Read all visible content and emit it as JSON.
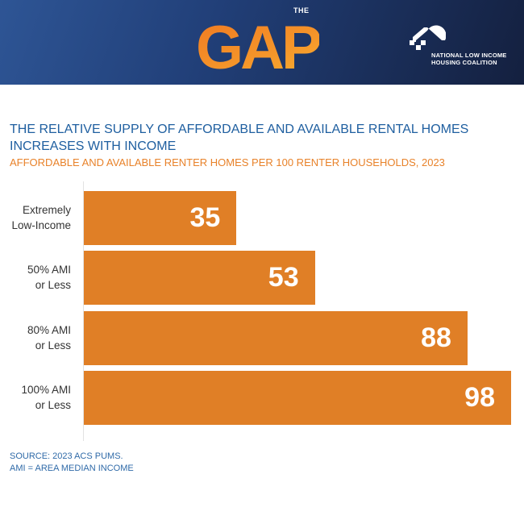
{
  "header": {
    "logo_small": "THE",
    "logo_main": "GAP",
    "org_line1": "NATIONAL LOW INCOME",
    "org_line2": "HOUSING COALITION"
  },
  "colors": {
    "bar": "#E07F26",
    "title": "#1F5FA0",
    "subtitle": "#E8822A"
  },
  "chart_data": {
    "type": "bar",
    "orientation": "horizontal",
    "title": "THE RELATIVE SUPPLY OF AFFORDABLE AND AVAILABLE RENTAL HOMES INCREASES WITH INCOME",
    "subtitle": "AFFORDABLE AND AVAILABLE RENTER HOMES PER 100 RENTER HOUSEHOLDS, 2023",
    "categories": [
      {
        "line1": "Extremely",
        "line2": "Low-Income"
      },
      {
        "line1": "50% AMI",
        "line2": "or Less"
      },
      {
        "line1": "80% AMI",
        "line2": "or Less"
      },
      {
        "line1": "100% AMI",
        "line2": "or Less"
      }
    ],
    "values": [
      35,
      53,
      88,
      98
    ],
    "value_labels": [
      "35",
      "53",
      "88",
      "98"
    ],
    "xlim": [
      0,
      98
    ],
    "grid": false,
    "legend": "none"
  },
  "footer": {
    "source": "SOURCE: 2023 ACS PUMS.",
    "note": "AMI = AREA MEDIAN INCOME"
  }
}
